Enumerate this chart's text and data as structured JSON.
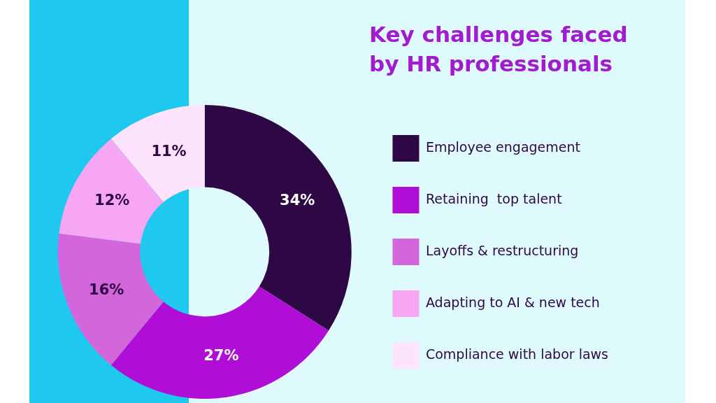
{
  "chart_data": {
    "type": "donut",
    "title": "Key challenges faced by HR professionals",
    "categories": [
      "Employee engagement",
      "Retaining  top talent",
      "Layoffs & restructuring",
      "Adapting to AI & new tech",
      "Compliance with labor laws"
    ],
    "values": [
      34,
      27,
      16,
      12,
      11
    ],
    "value_labels": [
      "34%",
      "27%",
      "16%",
      "12%",
      "11%"
    ],
    "colors": [
      "#2e0845",
      "#b00ed6",
      "#d466dc",
      "#f7a6f3",
      "#fde3fb"
    ],
    "legend": "right"
  }
}
